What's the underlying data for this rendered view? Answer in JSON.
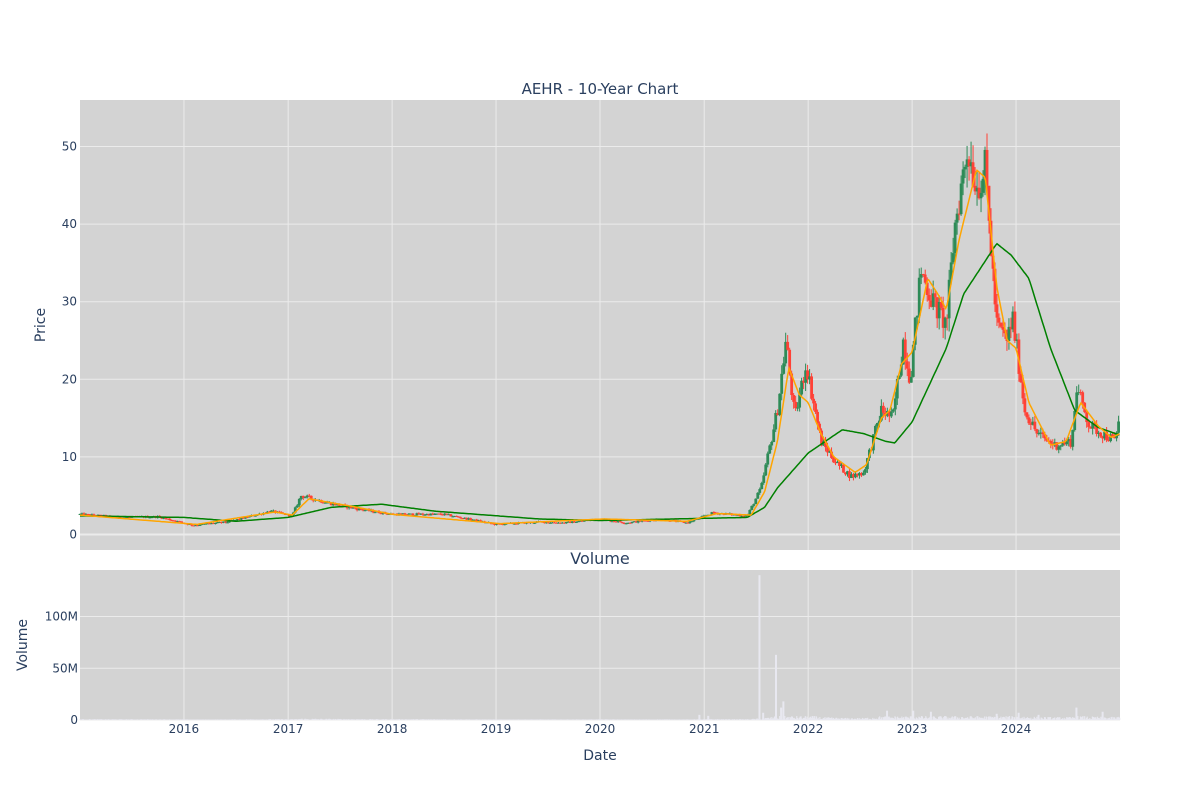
{
  "page": {
    "title": "AEHR - 10-Year Chart",
    "subplot_title": "Volume"
  },
  "colors": {
    "plot_bg": "#d3d3d3",
    "grid": "#ebebeb",
    "text": "#2a3f5f",
    "up": "#2e8b57",
    "down": "#ff4136",
    "ma_short": "#ffa500",
    "ma_long": "#008000",
    "volume": "#e8e8f0"
  },
  "chart_data": [
    {
      "type": "candlestick",
      "title": "AEHR - 10-Year Chart",
      "xlabel": "",
      "ylabel": "Price",
      "x_range": [
        "2015-01-01",
        "2024-12-31"
      ],
      "ylim": [
        -2,
        56
      ],
      "yticks": [
        0,
        10,
        20,
        30,
        40,
        50
      ],
      "xtick_years": [
        "2016",
        "2017",
        "2018",
        "2019",
        "2020",
        "2021",
        "2022",
        "2023",
        "2024"
      ],
      "grid": true,
      "price_anchors": [
        [
          "2015-01-01",
          2.6
        ],
        [
          "2015-06-01",
          2.2
        ],
        [
          "2015-10-01",
          2.3
        ],
        [
          "2016-02-01",
          1.2
        ],
        [
          "2016-06-01",
          1.6
        ],
        [
          "2016-11-01",
          3.0
        ],
        [
          "2017-01-15",
          2.4
        ],
        [
          "2017-02-15",
          5.0
        ],
        [
          "2017-06-01",
          4.0
        ],
        [
          "2017-09-01",
          3.3
        ],
        [
          "2018-01-01",
          2.6
        ],
        [
          "2018-07-01",
          2.6
        ],
        [
          "2019-01-01",
          1.3
        ],
        [
          "2019-06-01",
          1.6
        ],
        [
          "2019-09-01",
          1.5
        ],
        [
          "2020-01-01",
          2.0
        ],
        [
          "2020-04-01",
          1.5
        ],
        [
          "2020-08-01",
          2.0
        ],
        [
          "2020-11-01",
          1.5
        ],
        [
          "2021-02-01",
          2.8
        ],
        [
          "2021-06-01",
          2.4
        ],
        [
          "2021-07-20",
          6.0
        ],
        [
          "2021-09-15",
          16.0
        ],
        [
          "2021-10-15",
          25.0
        ],
        [
          "2021-11-15",
          15.0
        ],
        [
          "2021-12-25",
          22.0
        ],
        [
          "2022-02-15",
          12.0
        ],
        [
          "2022-04-15",
          9.0
        ],
        [
          "2022-06-01",
          7.5
        ],
        [
          "2022-07-15",
          8.0
        ],
        [
          "2022-09-15",
          16.0
        ],
        [
          "2022-10-25",
          15.0
        ],
        [
          "2022-12-01",
          25.0
        ],
        [
          "2022-12-25",
          20.0
        ],
        [
          "2023-02-01",
          34.0
        ],
        [
          "2023-03-15",
          30.0
        ],
        [
          "2023-05-01",
          27.0
        ],
        [
          "2023-06-01",
          40.0
        ],
        [
          "2023-07-15",
          50.0
        ],
        [
          "2023-08-15",
          45.0
        ],
        [
          "2023-09-15",
          47.0
        ],
        [
          "2023-10-25",
          27.0
        ],
        [
          "2023-12-01",
          25.0
        ],
        [
          "2023-12-20",
          28.0
        ],
        [
          "2024-02-01",
          16.0
        ],
        [
          "2024-03-15",
          13.0
        ],
        [
          "2024-05-15",
          11.5
        ],
        [
          "2024-07-15",
          12.0
        ],
        [
          "2024-08-01",
          19.0
        ],
        [
          "2024-09-15",
          14.0
        ],
        [
          "2024-11-01",
          13.0
        ],
        [
          "2024-12-15",
          12.0
        ],
        [
          "2024-12-31",
          16.0
        ]
      ],
      "ma_short_anchors": [
        [
          "2015-01-01",
          2.5
        ],
        [
          "2016-02-15",
          1.3
        ],
        [
          "2016-11-15",
          2.9
        ],
        [
          "2017-01-15",
          2.5
        ],
        [
          "2017-03-15",
          4.6
        ],
        [
          "2017-09-01",
          3.5
        ],
        [
          "2018-01-01",
          2.6
        ],
        [
          "2019-01-15",
          1.4
        ],
        [
          "2020-01-15",
          2.0
        ],
        [
          "2020-11-01",
          1.7
        ],
        [
          "2021-02-15",
          2.7
        ],
        [
          "2021-06-15",
          2.5
        ],
        [
          "2021-08-01",
          5.5
        ],
        [
          "2021-09-15",
          12.0
        ],
        [
          "2021-10-25",
          21.5
        ],
        [
          "2021-12-01",
          18.0
        ],
        [
          "2022-01-01",
          17.0
        ],
        [
          "2022-02-15",
          13.0
        ],
        [
          "2022-04-01",
          10.0
        ],
        [
          "2022-06-15",
          8.0
        ],
        [
          "2022-07-25",
          9.0
        ],
        [
          "2022-09-15",
          15.0
        ],
        [
          "2022-10-15",
          16.0
        ],
        [
          "2022-11-25",
          22.0
        ],
        [
          "2023-01-01",
          23.5
        ],
        [
          "2023-02-25",
          33.0
        ],
        [
          "2023-04-01",
          31.0
        ],
        [
          "2023-05-01",
          29.0
        ],
        [
          "2023-06-15",
          38.0
        ],
        [
          "2023-08-15",
          47.0
        ],
        [
          "2023-09-15",
          46.0
        ],
        [
          "2023-10-25",
          32.0
        ],
        [
          "2023-12-01",
          25.0
        ],
        [
          "2024-01-01",
          24.0
        ],
        [
          "2024-02-15",
          17.0
        ],
        [
          "2024-05-01",
          11.5
        ],
        [
          "2024-06-25",
          12.0
        ],
        [
          "2024-08-15",
          17.0
        ],
        [
          "2024-10-15",
          14.0
        ],
        [
          "2024-12-01",
          12.5
        ],
        [
          "2024-12-31",
          13.0
        ]
      ],
      "ma_long_anchors": [
        [
          "2015-01-01",
          2.4
        ],
        [
          "2016-01-01",
          2.2
        ],
        [
          "2016-07-01",
          1.7
        ],
        [
          "2017-01-01",
          2.2
        ],
        [
          "2017-06-01",
          3.5
        ],
        [
          "2017-11-25",
          3.9
        ],
        [
          "2018-06-01",
          3.0
        ],
        [
          "2019-06-01",
          2.0
        ],
        [
          "2020-01-01",
          1.8
        ],
        [
          "2021-06-01",
          2.2
        ],
        [
          "2021-08-01",
          3.5
        ],
        [
          "2021-09-15",
          6.0
        ],
        [
          "2022-01-01",
          10.5
        ],
        [
          "2022-05-01",
          13.5
        ],
        [
          "2022-07-15",
          13.0
        ],
        [
          "2022-10-01",
          12.0
        ],
        [
          "2022-11-01",
          11.8
        ],
        [
          "2023-01-01",
          14.5
        ],
        [
          "2023-05-01",
          24.0
        ],
        [
          "2023-07-01",
          31.0
        ],
        [
          "2023-10-25",
          37.5
        ],
        [
          "2023-12-15",
          36.0
        ],
        [
          "2024-02-15",
          33.0
        ],
        [
          "2024-05-01",
          24.0
        ],
        [
          "2024-07-25",
          16.0
        ],
        [
          "2024-10-15",
          13.8
        ],
        [
          "2024-12-31",
          12.8
        ]
      ]
    },
    {
      "type": "bar",
      "title": "Volume",
      "xlabel": "Date",
      "ylabel": "Volume",
      "ylim": [
        0,
        145000000
      ],
      "ytick_values": [
        0,
        50000000,
        100000000
      ],
      "ytick_labels": [
        "0",
        "50M",
        "100M"
      ],
      "xtick_years": [
        "2016",
        "2017",
        "2018",
        "2019",
        "2020",
        "2021",
        "2022",
        "2023",
        "2024"
      ],
      "grid": true,
      "peaks": [
        [
          "2021-07-14",
          140000000
        ],
        [
          "2021-09-10",
          63000000
        ],
        [
          "2021-07-27",
          7000000
        ],
        [
          "2021-09-28",
          12000000
        ],
        [
          "2021-10-06",
          18000000
        ],
        [
          "2022-10-05",
          9000000
        ],
        [
          "2023-03-08",
          8000000
        ],
        [
          "2023-10-25",
          6000000
        ],
        [
          "2024-07-31",
          12000000
        ],
        [
          "2024-10-31",
          8000000
        ],
        [
          "2020-12-15",
          5000000
        ],
        [
          "2021-01-15",
          4000000
        ],
        [
          "2024-01-10",
          7000000
        ],
        [
          "2023-01-05",
          9000000
        ],
        [
          "2024-03-20",
          5000000
        ]
      ]
    }
  ]
}
